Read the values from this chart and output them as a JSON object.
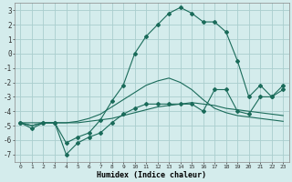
{
  "xlabel": "Humidex (Indice chaleur)",
  "bg_color": "#d4ecec",
  "grid_color": "#aacece",
  "line_color": "#1a6b5a",
  "xlim": [
    -0.5,
    23.5
  ],
  "ylim": [
    -7.5,
    3.5
  ],
  "xticks": [
    0,
    1,
    2,
    3,
    4,
    5,
    6,
    7,
    8,
    9,
    10,
    11,
    12,
    13,
    14,
    15,
    16,
    17,
    18,
    19,
    20,
    21,
    22,
    23
  ],
  "yticks": [
    3,
    2,
    1,
    0,
    -1,
    -2,
    -3,
    -4,
    -5,
    -6,
    -7
  ],
  "line1_x": [
    0,
    1,
    2,
    3,
    4,
    5,
    6,
    7,
    8,
    9,
    10,
    11,
    12,
    13,
    14,
    15,
    16,
    17,
    18,
    19,
    20,
    21,
    22,
    23
  ],
  "line1_y": [
    -4.8,
    -5.0,
    -4.8,
    -4.8,
    -4.8,
    -4.8,
    -4.7,
    -4.6,
    -4.5,
    -4.3,
    -4.1,
    -3.9,
    -3.7,
    -3.6,
    -3.5,
    -3.4,
    -3.5,
    -3.6,
    -3.8,
    -3.9,
    -4.0,
    -4.1,
    -4.2,
    -4.3
  ],
  "line2_x": [
    0,
    1,
    2,
    3,
    4,
    5,
    6,
    7,
    8,
    9,
    10,
    11,
    12,
    13,
    14,
    15,
    16,
    17,
    18,
    19,
    20,
    21,
    22,
    23
  ],
  "line2_y": [
    -4.8,
    -5.0,
    -4.8,
    -4.8,
    -4.8,
    -4.7,
    -4.5,
    -4.2,
    -3.7,
    -3.2,
    -2.7,
    -2.2,
    -1.9,
    -1.7,
    -2.0,
    -2.5,
    -3.2,
    -3.8,
    -4.1,
    -4.3,
    -4.4,
    -4.5,
    -4.6,
    -4.7
  ],
  "line3_x": [
    0,
    2,
    3,
    4,
    5,
    6,
    7,
    8,
    9,
    10,
    11,
    12,
    13,
    14,
    15,
    16,
    17,
    18,
    19,
    20,
    21,
    22,
    23
  ],
  "line3_y": [
    -4.8,
    -4.8,
    -4.8,
    -6.2,
    -5.8,
    -5.5,
    -4.6,
    -3.3,
    -2.2,
    0.0,
    1.2,
    2.0,
    2.8,
    3.2,
    2.8,
    2.2,
    2.2,
    1.5,
    -0.5,
    -3.0,
    -2.2,
    -3.0,
    -2.2
  ],
  "line4_x": [
    0,
    1,
    2,
    3,
    4,
    5,
    6,
    7,
    8,
    9,
    10,
    11,
    12,
    13,
    14,
    15,
    16,
    17,
    18,
    19,
    20,
    21,
    22,
    23
  ],
  "line4_y": [
    -4.8,
    -5.2,
    -4.8,
    -4.8,
    -7.0,
    -6.2,
    -5.8,
    -5.5,
    -4.8,
    -4.2,
    -3.8,
    -3.5,
    -3.5,
    -3.5,
    -3.5,
    -3.5,
    -4.0,
    -2.5,
    -2.5,
    -4.0,
    -4.2,
    -3.0,
    -3.0,
    -2.5
  ]
}
